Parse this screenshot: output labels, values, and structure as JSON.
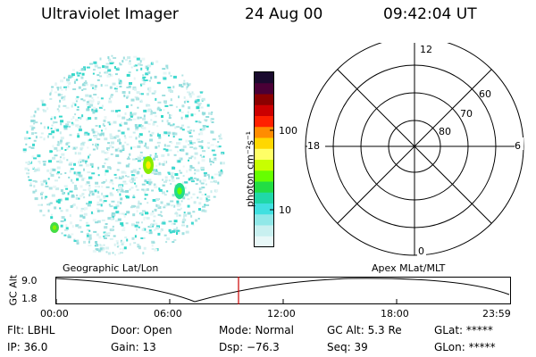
{
  "header": {
    "title": "Ultraviolet Imager",
    "date": "24 Aug 00",
    "time": "09:42:04 UT"
  },
  "colorbar": {
    "label": "photon cm⁻²s⁻¹",
    "ticks": [
      "100",
      "10"
    ],
    "colors": [
      "#1a0a2e",
      "#4a0036",
      "#8b0000",
      "#cc0000",
      "#ff2000",
      "#ff8c00",
      "#ffd700",
      "#ffff66",
      "#c8ff00",
      "#66ff00",
      "#22dd44",
      "#20d8a8",
      "#40e0e0",
      "#90e8e8",
      "#c8f0f0",
      "#e8f8f8"
    ]
  },
  "image_panel": {
    "caption": "Geographic Lat/Lon",
    "spots": [
      {
        "name": "aurora-spot-1",
        "color": "#88ee00",
        "core": "#ffee00"
      },
      {
        "name": "aurora-spot-2",
        "color": "#22dd88",
        "core": "#66ff00"
      },
      {
        "name": "aurora-spot-3",
        "color": "#44dd44",
        "core": "#88ee00"
      }
    ]
  },
  "polar_plot": {
    "caption": "Apex MLat/MLT",
    "mlt_labels": [
      "12",
      "18",
      "6",
      "0"
    ],
    "lat_labels": [
      "60",
      "70",
      "80"
    ]
  },
  "altitude_plot": {
    "ylabel": "GC Alt",
    "y_top": "9.0",
    "y_bottom": "1.8",
    "x_ticks": [
      "00:00",
      "06:00",
      "12:00",
      "18:00",
      "23:59"
    ],
    "marker_color": "#cc0000"
  },
  "status": {
    "flt": "Flt: LBHL",
    "ip": "IP: 36.0",
    "door": "Door: Open",
    "gain": "Gain: 13",
    "mode": "Mode: Normal",
    "dsp": "Dsp:  −76.3",
    "gc_alt": "GC Alt: 5.3 Re",
    "seq": "Seq: 39",
    "glat": "GLat: *****",
    "glon": "GLon: *****"
  }
}
